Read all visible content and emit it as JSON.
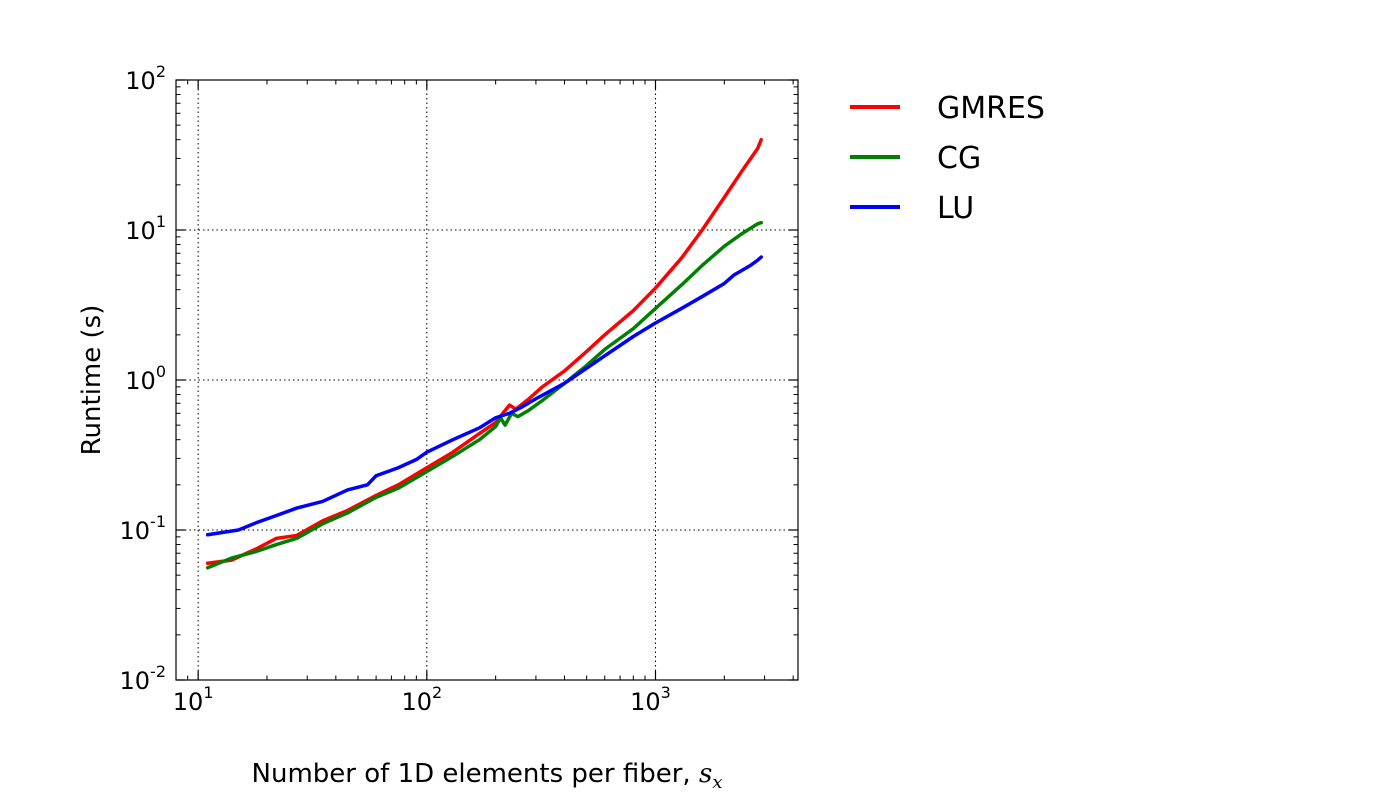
{
  "chart_data": {
    "type": "line",
    "scale": {
      "x": "log",
      "y": "log"
    },
    "xlabel": "Number of 1D elements per fiber, ",
    "xlabel_math": "s",
    "xlabel_math_sub": "x",
    "ylabel": "Runtime (s)",
    "xlim": [
      8,
      4200
    ],
    "ylim": [
      0.01,
      100
    ],
    "x_ticks": [
      {
        "value": 10,
        "base": "10",
        "exp": "1"
      },
      {
        "value": 100,
        "base": "10",
        "exp": "2"
      },
      {
        "value": 1000,
        "base": "10",
        "exp": "3"
      }
    ],
    "y_ticks": [
      {
        "value": 0.01,
        "base": "10",
        "exp": "-2"
      },
      {
        "value": 0.1,
        "base": "10",
        "exp": "-1"
      },
      {
        "value": 1,
        "base": "10",
        "exp": "0"
      },
      {
        "value": 10,
        "base": "10",
        "exp": "1"
      },
      {
        "value": 100,
        "base": "10",
        "exp": "2"
      }
    ],
    "grid": true,
    "legend_position": "outside-right-top",
    "series": [
      {
        "name": "GMRES",
        "color": "#ff0000",
        "x": [
          11,
          14,
          18,
          22,
          27,
          35,
          45,
          60,
          75,
          100,
          130,
          170,
          200,
          215,
          230,
          245,
          280,
          320,
          400,
          500,
          600,
          800,
          1000,
          1300,
          1600,
          2000,
          2400,
          2800,
          2900
        ],
        "y": [
          0.06,
          0.063,
          0.075,
          0.088,
          0.092,
          0.115,
          0.135,
          0.17,
          0.2,
          0.26,
          0.33,
          0.44,
          0.52,
          0.6,
          0.68,
          0.64,
          0.75,
          0.9,
          1.15,
          1.55,
          2.0,
          2.9,
          4.1,
          6.5,
          10.0,
          16.5,
          25.0,
          35.0,
          40.0
        ]
      },
      {
        "name": "CG",
        "color": "#008000",
        "x": [
          11,
          14,
          18,
          22,
          27,
          35,
          45,
          60,
          75,
          100,
          130,
          170,
          200,
          210,
          220,
          235,
          250,
          280,
          320,
          400,
          500,
          600,
          800,
          1000,
          1300,
          1600,
          2000,
          2400,
          2800,
          2900
        ],
        "y": [
          0.056,
          0.065,
          0.072,
          0.08,
          0.088,
          0.11,
          0.13,
          0.165,
          0.19,
          0.245,
          0.31,
          0.4,
          0.49,
          0.56,
          0.5,
          0.6,
          0.57,
          0.63,
          0.73,
          0.95,
          1.25,
          1.6,
          2.2,
          3.0,
          4.3,
          5.8,
          7.8,
          9.5,
          11.0,
          11.2
        ]
      },
      {
        "name": "LU",
        "color": "#0000ff",
        "x": [
          11,
          15,
          18,
          22,
          27,
          35,
          45,
          55,
          60,
          75,
          90,
          100,
          130,
          170,
          200,
          230,
          260,
          300,
          400,
          500,
          600,
          800,
          1000,
          1300,
          1600,
          2000,
          2200,
          2400,
          2600,
          2800,
          2900
        ],
        "y": [
          0.093,
          0.1,
          0.112,
          0.125,
          0.14,
          0.155,
          0.185,
          0.2,
          0.23,
          0.26,
          0.295,
          0.33,
          0.4,
          0.48,
          0.56,
          0.6,
          0.66,
          0.75,
          0.95,
          1.2,
          1.45,
          1.95,
          2.4,
          3.0,
          3.6,
          4.4,
          5.0,
          5.4,
          5.8,
          6.3,
          6.6
        ]
      }
    ]
  }
}
